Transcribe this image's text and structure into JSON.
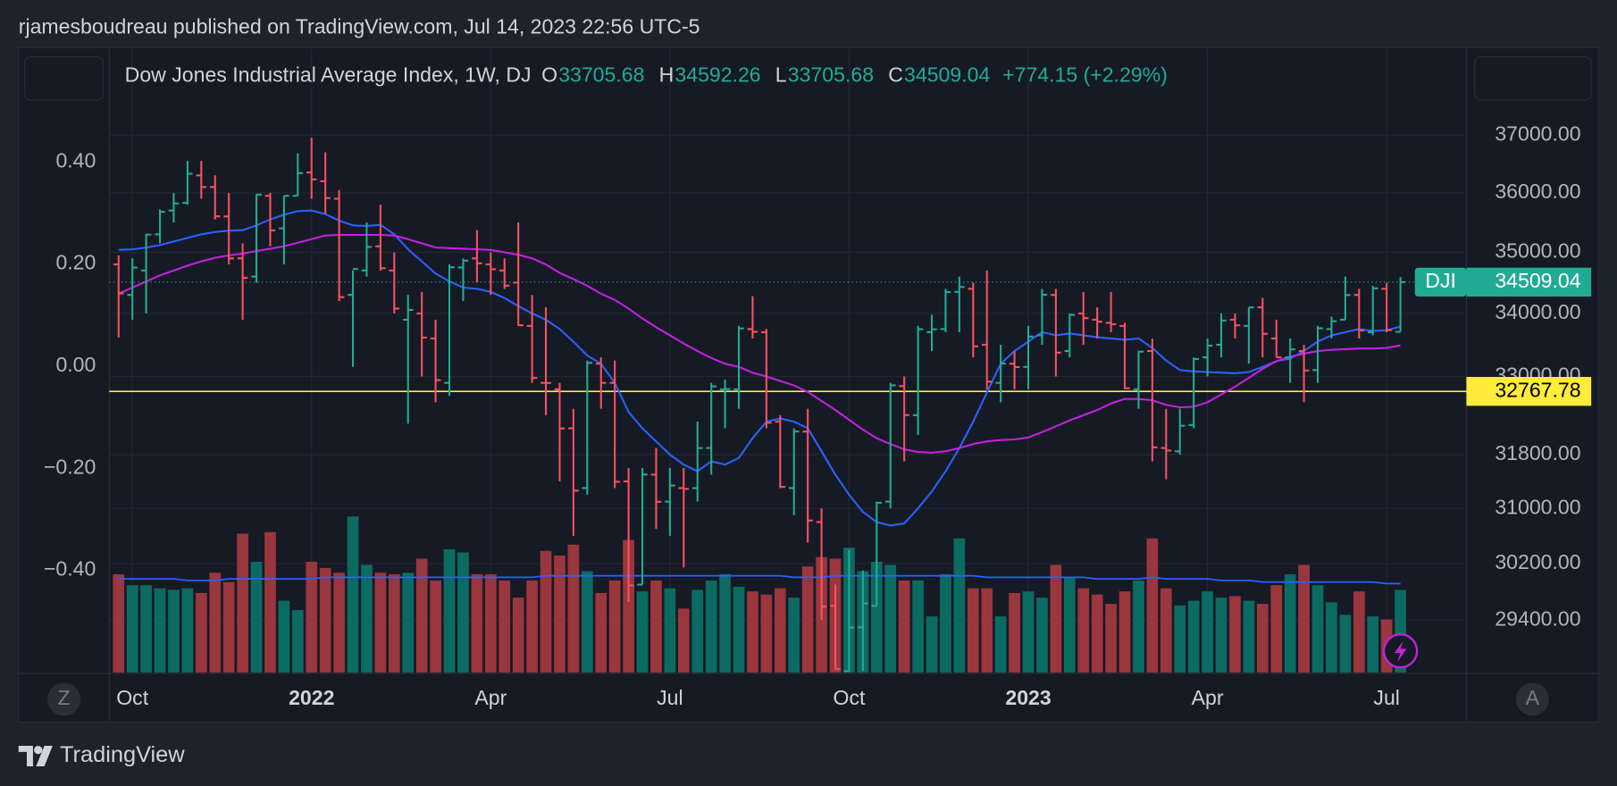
{
  "header": {
    "text": "rjamesboudreau published on TradingView.com, Jul 14, 2023 22:56 UTC-5"
  },
  "ui": {
    "z_button": "Z",
    "a_button": "A",
    "brand": "TradingView"
  },
  "chart_data": {
    "type": "ohlc",
    "title": "Dow Jones Industrial Average Index, 1W, DJ",
    "ticker": "DJI",
    "ohlc_letters": [
      "O",
      "H",
      "L",
      "C"
    ],
    "change_label": "+774.15 (+2.29%)",
    "log_scale": true,
    "grid": true,
    "up_color": "#22ab94",
    "down_color": "#f7525f",
    "hline": 32767.78,
    "hline_color": "#ffeb3b",
    "categories": [
      null,
      "Oct",
      null,
      null,
      null,
      null,
      null,
      null,
      null,
      null,
      null,
      null,
      null,
      null,
      "2022",
      null,
      null,
      null,
      null,
      null,
      null,
      null,
      null,
      null,
      null,
      null,
      null,
      "Apr",
      null,
      null,
      null,
      null,
      null,
      null,
      null,
      null,
      null,
      null,
      null,
      null,
      "Jul",
      null,
      null,
      null,
      null,
      null,
      null,
      null,
      null,
      null,
      null,
      null,
      null,
      "Oct",
      null,
      null,
      null,
      null,
      null,
      null,
      null,
      null,
      null,
      null,
      null,
      null,
      "2023",
      null,
      null,
      null,
      null,
      null,
      null,
      null,
      null,
      null,
      null,
      null,
      null,
      "Apr",
      null,
      null,
      null,
      null,
      null,
      null,
      null,
      null,
      null,
      null,
      null,
      null,
      "Jul",
      null
    ],
    "open": [
      34800,
      34300,
      34700,
      35300,
      35700,
      35830,
      36300,
      36100,
      35600,
      34900,
      34600,
      35950,
      35400,
      35950,
      36350,
      36200,
      35900,
      34300,
      34700,
      35100,
      34700,
      33900,
      34000,
      33600,
      32900,
      34750,
      34900,
      34800,
      34700,
      34500,
      33800,
      32900,
      32800,
      32200,
      31300,
      33200,
      32900,
      31400,
      29900,
      31500,
      31100,
      31300,
      31300,
      31900,
      32800,
      32800,
      33750,
      33700,
      32300,
      31300,
      32150,
      30800,
      29600,
      28700,
      29300,
      29600,
      31100,
      32850,
      32400,
      33700,
      33750,
      34350,
      34400,
      33500,
      32900,
      33200,
      33150,
      33650,
      34300,
      33400,
      34000,
      33900,
      33850,
      33800,
      32800,
      33400,
      31900,
      31850,
      32250,
      33300,
      33500,
      33900,
      33800,
      34100,
      33600,
      33300,
      33400,
      33100,
      33750,
      33900,
      34300,
      33700,
      34400,
      33705.68
    ],
    "high": [
      34950,
      34900,
      35310,
      35720,
      36000,
      36550,
      36550,
      36300,
      36000,
      35150,
      35980,
      36000,
      35950,
      36680,
      36952,
      36700,
      36050,
      34700,
      35500,
      35800,
      35000,
      34300,
      34350,
      33900,
      34800,
      34900,
      35372,
      35000,
      34900,
      35500,
      34300,
      34100,
      32900,
      32500,
      33250,
      33300,
      33250,
      31600,
      31600,
      31900,
      31600,
      31600,
      32300,
      32900,
      32950,
      33800,
      34281,
      33750,
      32400,
      32200,
      32500,
      31000,
      29900,
      30400,
      30100,
      31100,
      32900,
      33000,
      33800,
      33980,
      34400,
      34600,
      34500,
      34700,
      33500,
      33400,
      33800,
      34400,
      34400,
      34000,
      34350,
      34100,
      34350,
      33850,
      33400,
      33600,
      32500,
      32500,
      33300,
      33600,
      34000,
      34000,
      34100,
      34250,
      33900,
      33600,
      33500,
      33800,
      33950,
      34600,
      34400,
      34450,
      34500,
      34592.26
    ],
    "low": [
      33613,
      33900,
      34000,
      35150,
      35500,
      35800,
      35900,
      35550,
      34800,
      33900,
      34500,
      35100,
      34800,
      35950,
      35900,
      35650,
      34200,
      33150,
      34600,
      34700,
      34000,
      32270,
      33000,
      32600,
      32700,
      34200,
      34500,
      34300,
      34400,
      33800,
      32900,
      32400,
      31400,
      30600,
      31200,
      32500,
      31300,
      29653,
      29900,
      30700,
      30600,
      30143,
      31100,
      31500,
      32200,
      32500,
      33600,
      32200,
      31300,
      30900,
      30500,
      29400,
      28715,
      28700,
      28700,
      29600,
      31000,
      31700,
      32100,
      33400,
      33700,
      33700,
      33300,
      32800,
      32600,
      32800,
      32800,
      33500,
      33000,
      33300,
      33500,
      33600,
      33700,
      32800,
      32500,
      31700,
      31430,
      31800,
      32200,
      33000,
      33300,
      33600,
      33200,
      33300,
      33300,
      32900,
      32600,
      32900,
      33600,
      33900,
      33600,
      33650,
      33700,
      33705.68
    ],
    "close": [
      34326,
      34746,
      35295,
      35677,
      35820,
      36328,
      36100,
      35602,
      34899,
      34580,
      35971,
      35365,
      35950,
      36338,
      36231,
      35912,
      34265,
      34725,
      35089,
      34738,
      34079,
      34058,
      33614,
      32944,
      34754,
      34861,
      34818,
      34721,
      34451,
      33811,
      32977,
      32899,
      32197,
      31262,
      33213,
      32900,
      31393,
      29888,
      31501,
      31097,
      31338,
      31288,
      31899,
      32845,
      32803,
      33761,
      33706,
      32283,
      31318,
      32151,
      30822,
      29590,
      28726,
      29297,
      29635,
      31083,
      32862,
      32403,
      33748,
      33746,
      34347,
      34430,
      33476,
      32920,
      33203,
      33147,
      33631,
      34303,
      33375,
      33978,
      33926,
      33869,
      33827,
      32817,
      33391,
      31910,
      31862,
      32238,
      33274,
      33485,
      33887,
      33809,
      34098,
      33674,
      33300,
      33427,
      33093,
      33762,
      33876,
      34299,
      33727,
      34408,
      33734,
      34509.04
    ],
    "moving_averages": [
      {
        "color": "#2962ff",
        "values": [
          35040,
          35050,
          35080,
          35120,
          35180,
          35240,
          35300,
          35340,
          35360,
          35370,
          35450,
          35550,
          35630,
          35690,
          35700,
          35640,
          35530,
          35450,
          35440,
          35460,
          35300,
          35050,
          34850,
          34650,
          34520,
          34420,
          34400,
          34350,
          34250,
          34120,
          34000,
          33900,
          33750,
          33550,
          33330,
          33200,
          32900,
          32450,
          32200,
          32000,
          31800,
          31650,
          31550,
          31700,
          31650,
          31750,
          32050,
          32300,
          32350,
          32300,
          32200,
          31850,
          31500,
          31200,
          30950,
          30800,
          30750,
          30780,
          31000,
          31250,
          31550,
          31900,
          32300,
          32750,
          33200,
          33400,
          33550,
          33700,
          33650,
          33680,
          33650,
          33620,
          33600,
          33580,
          33600,
          33450,
          33250,
          33100,
          33080,
          33070,
          33060,
          33050,
          33070,
          33150,
          33240,
          33280,
          33400,
          33550,
          33650,
          33700,
          33750,
          33720,
          33730,
          33790
        ]
      },
      {
        "color": "#c321e0",
        "values": [
          34320,
          34420,
          34520,
          34620,
          34700,
          34780,
          34850,
          34910,
          34950,
          34980,
          35020,
          35060,
          35100,
          35160,
          35220,
          35280,
          35290,
          35290,
          35290,
          35290,
          35280,
          35220,
          35150,
          35080,
          35070,
          35060,
          35050,
          35040,
          35000,
          34960,
          34900,
          34800,
          34660,
          34560,
          34450,
          34320,
          34220,
          34080,
          33920,
          33780,
          33650,
          33520,
          33400,
          33290,
          33200,
          33150,
          33060,
          33000,
          32930,
          32860,
          32760,
          32620,
          32480,
          32330,
          32180,
          32050,
          31960,
          31880,
          31840,
          31830,
          31850,
          31900,
          31960,
          32000,
          32020,
          32030,
          32060,
          32140,
          32230,
          32320,
          32400,
          32480,
          32580,
          32650,
          32650,
          32630,
          32560,
          32520,
          32530,
          32600,
          32720,
          32840,
          32980,
          33120,
          33240,
          33310,
          33360,
          33400,
          33420,
          33430,
          33440,
          33440,
          33450,
          33490
        ]
      }
    ],
    "ylim": [
      28680,
      38550
    ],
    "yticks": [
      {
        "value": 29400,
        "label": "29400.00"
      },
      {
        "value": 30200,
        "label": "30200.00"
      },
      {
        "value": 31000,
        "label": "31000.00"
      },
      {
        "value": 31800,
        "label": "31800.00"
      },
      {
        "value": 33000,
        "label": "33000.00"
      },
      {
        "value": 34000,
        "label": "34000.00"
      },
      {
        "value": 35000,
        "label": "35000.00"
      },
      {
        "value": 36000,
        "label": "36000.00"
      },
      {
        "value": 37000,
        "label": "37000.00"
      }
    ],
    "y2lim": [
      -0.6,
      0.622
    ],
    "y2ticks": [
      {
        "value": 0.4,
        "label": "0.40"
      },
      {
        "value": 0.2,
        "label": "0.20"
      },
      {
        "value": 0,
        "label": "0.00"
      },
      {
        "value": -0.2,
        "label": "−0.20"
      },
      {
        "value": -0.4,
        "label": "−0.40"
      }
    ],
    "volume": {
      "vlim": [
        0,
        400
      ],
      "up_color": "#0b6b62",
      "down_color": "#9a363d",
      "ma_color": "#2962ff",
      "values": [
        63,
        56,
        56,
        54,
        53,
        54,
        51,
        64,
        58,
        89,
        71,
        90,
        46,
        40,
        71,
        67,
        64,
        100,
        69,
        64,
        63,
        64,
        73,
        59,
        79,
        77,
        63,
        63,
        59,
        48,
        59,
        78,
        75,
        82,
        65,
        51,
        59,
        85,
        52,
        59,
        54,
        41,
        53,
        59,
        63,
        55,
        52,
        50,
        54,
        48,
        68,
        74,
        73,
        80,
        65,
        71,
        69,
        59,
        59,
        36,
        63,
        86,
        54,
        54,
        36,
        51,
        52,
        48,
        69,
        61,
        54,
        50,
        44,
        52,
        59,
        86,
        54,
        43,
        46,
        52,
        48,
        49,
        46,
        44,
        56,
        63,
        69,
        56,
        45,
        37,
        52,
        36,
        34,
        53
      ],
      "ma_values": [
        60,
        60,
        60,
        60,
        60,
        59,
        59,
        59,
        60,
        60,
        60,
        60,
        60,
        60,
        60,
        61,
        61,
        61,
        61,
        61,
        61,
        61,
        61,
        61,
        61,
        61,
        61,
        61,
        61,
        61,
        61,
        62,
        62,
        62,
        62,
        62,
        62,
        62,
        62,
        62,
        62,
        62,
        62,
        62,
        62,
        62,
        62,
        62,
        62,
        61,
        61,
        61,
        62,
        62,
        62,
        62,
        62,
        62,
        62,
        62,
        62,
        62,
        62,
        61,
        61,
        61,
        61,
        61,
        61,
        61,
        61,
        60,
        60,
        60,
        60,
        61,
        60,
        60,
        60,
        60,
        59,
        59,
        59,
        58,
        58,
        58,
        58,
        58,
        58,
        58,
        58,
        58,
        57,
        57
      ]
    }
  }
}
